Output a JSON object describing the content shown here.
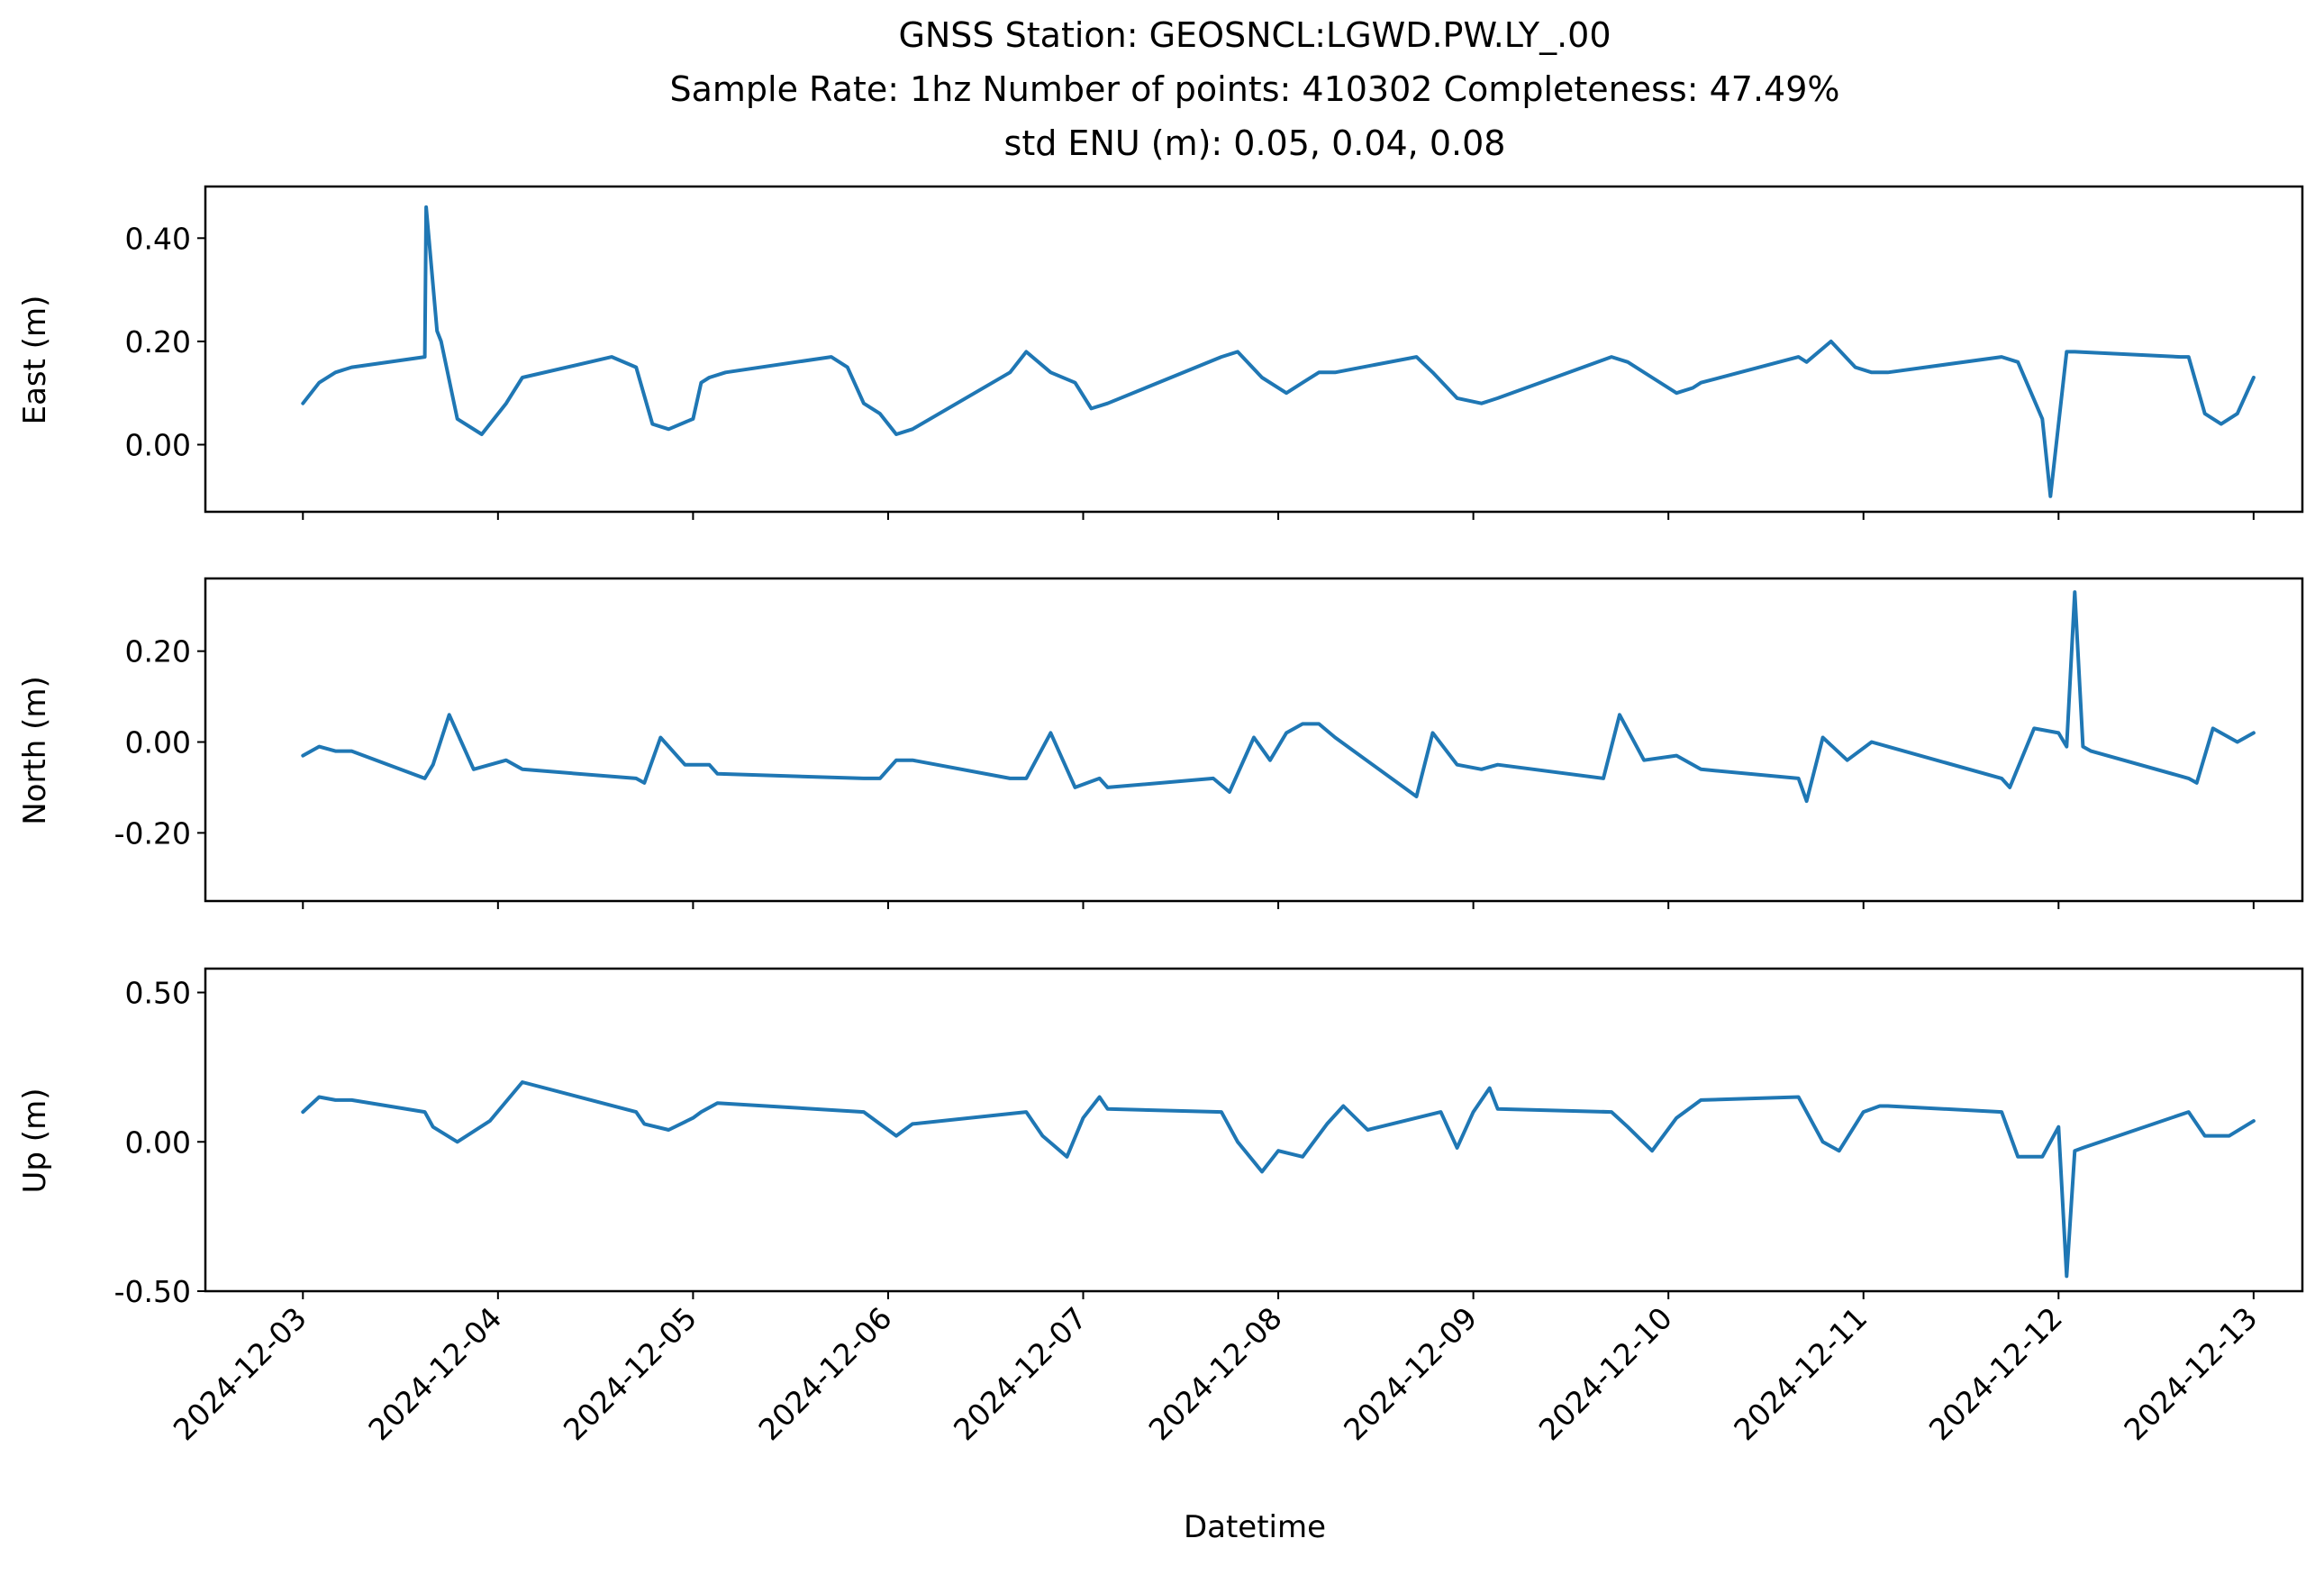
{
  "chart_data": {
    "type": "line",
    "title_lines": [
      "GNSS Station: GEOSNCL:LGWD.PW.LY_.00",
      "Sample Rate: 1hz   Number of points: 410302    Completeness:  47.49%",
      "std ENU (m):  0.05, 0.04, 0.08"
    ],
    "xlabel": "Datetime",
    "x_ticks": [
      "2024-12-03",
      "2024-12-04",
      "2024-12-05",
      "2024-12-06",
      "2024-12-07",
      "2024-12-08",
      "2024-12-09",
      "2024-12-10",
      "2024-12-11",
      "2024-12-12",
      "2024-12-13"
    ],
    "xlim": [
      "2024-12-02T12:00",
      "2024-12-13T06:00"
    ],
    "color": "#1f77b4",
    "grid": false,
    "panels": [
      {
        "name": "east",
        "ylabel": "East (m)",
        "ylim": [
          -0.13,
          0.5
        ],
        "y_ticks": [
          0.4,
          0.2,
          0.0
        ],
        "y_tick_labels": [
          "0.40",
          "0.20",
          "0.00"
        ],
        "x": [
          "2024-12-03T00:00",
          "2024-12-03T02:00",
          "2024-12-03T04:00",
          "2024-12-03T06:00",
          "2024-12-03T15:00",
          "2024-12-03T15:10",
          "2024-12-03T16:30",
          "2024-12-03T17:00",
          "2024-12-03T19:00",
          "2024-12-03T22:00",
          "2024-12-04T01:00",
          "2024-12-04T03:00",
          "2024-12-04T14:00",
          "2024-12-04T17:00",
          "2024-12-04T19:00",
          "2024-12-04T21:00",
          "2024-12-05T00:00",
          "2024-12-05T01:00",
          "2024-12-05T02:00",
          "2024-12-05T04:00",
          "2024-12-05T17:00",
          "2024-12-05T19:00",
          "2024-12-05T21:00",
          "2024-12-05T23:00",
          "2024-12-06T01:00",
          "2024-12-06T03:00",
          "2024-12-06T15:00",
          "2024-12-06T17:00",
          "2024-12-06T20:00",
          "2024-12-06T23:00",
          "2024-12-07T01:00",
          "2024-12-07T03:00",
          "2024-12-07T17:00",
          "2024-12-07T19:00",
          "2024-12-07T22:00",
          "2024-12-08T01:00",
          "2024-12-08T03:00",
          "2024-12-08T05:00",
          "2024-12-08T07:00",
          "2024-12-08T17:00",
          "2024-12-08T19:00",
          "2024-12-08T22:00",
          "2024-12-09T01:00",
          "2024-12-09T03:00",
          "2024-12-09T17:00",
          "2024-12-09T19:00",
          "2024-12-09T22:00",
          "2024-12-10T01:00",
          "2024-12-10T03:00",
          "2024-12-10T04:00",
          "2024-12-10T16:00",
          "2024-12-10T17:00",
          "2024-12-10T20:00",
          "2024-12-10T23:00",
          "2024-12-11T01:00",
          "2024-12-11T03:00",
          "2024-12-11T17:00",
          "2024-12-11T19:00",
          "2024-12-11T22:00",
          "2024-12-11T23:00",
          "2024-12-12T01:00",
          "2024-12-12T02:00",
          "2024-12-12T15:00",
          "2024-12-12T16:00",
          "2024-12-12T18:00",
          "2024-12-12T20:00",
          "2024-12-12T22:00",
          "2024-12-13T00:00"
        ],
        "y": [
          0.08,
          0.12,
          0.14,
          0.15,
          0.17,
          0.46,
          0.22,
          0.2,
          0.05,
          0.02,
          0.08,
          0.13,
          0.17,
          0.15,
          0.04,
          0.03,
          0.05,
          0.12,
          0.13,
          0.14,
          0.17,
          0.15,
          0.08,
          0.06,
          0.02,
          0.03,
          0.14,
          0.18,
          0.14,
          0.12,
          0.07,
          0.08,
          0.17,
          0.18,
          0.13,
          0.1,
          0.12,
          0.14,
          0.14,
          0.17,
          0.14,
          0.09,
          0.08,
          0.09,
          0.17,
          0.16,
          0.13,
          0.1,
          0.11,
          0.12,
          0.17,
          0.16,
          0.2,
          0.15,
          0.14,
          0.14,
          0.17,
          0.16,
          0.05,
          -0.1,
          0.18,
          0.18,
          0.17,
          0.17,
          0.06,
          0.04,
          0.06,
          0.13
        ]
      },
      {
        "name": "north",
        "ylabel": "North (m)",
        "ylim": [
          -0.35,
          0.36
        ],
        "y_ticks": [
          0.2,
          0.0,
          -0.2
        ],
        "y_tick_labels": [
          "0.20",
          "0.00",
          "-0.20"
        ],
        "x": [
          "2024-12-03T00:00",
          "2024-12-03T02:00",
          "2024-12-03T04:00",
          "2024-12-03T06:00",
          "2024-12-03T15:00",
          "2024-12-03T16:00",
          "2024-12-03T18:00",
          "2024-12-03T21:00",
          "2024-12-04T01:00",
          "2024-12-04T03:00",
          "2024-12-04T17:00",
          "2024-12-04T18:00",
          "2024-12-04T20:00",
          "2024-12-04T23:00",
          "2024-12-05T02:00",
          "2024-12-05T03:00",
          "2024-12-05T21:00",
          "2024-12-05T23:00",
          "2024-12-06T01:00",
          "2024-12-06T03:00",
          "2024-12-06T15:00",
          "2024-12-06T17:00",
          "2024-12-06T20:00",
          "2024-12-06T23:00",
          "2024-12-07T02:00",
          "2024-12-07T03:00",
          "2024-12-07T16:00",
          "2024-12-07T18:00",
          "2024-12-07T21:00",
          "2024-12-07T23:00",
          "2024-12-08T01:00",
          "2024-12-08T03:00",
          "2024-12-08T05:00",
          "2024-12-08T07:00",
          "2024-12-08T17:00",
          "2024-12-08T19:00",
          "2024-12-08T22:00",
          "2024-12-09T01:00",
          "2024-12-09T03:00",
          "2024-12-09T16:00",
          "2024-12-09T18:00",
          "2024-12-09T21:00",
          "2024-12-10T01:00",
          "2024-12-10T04:00",
          "2024-12-10T16:00",
          "2024-12-10T17:00",
          "2024-12-10T19:00",
          "2024-12-10T22:00",
          "2024-12-11T01:00",
          "2024-12-11T03:00",
          "2024-12-11T17:00",
          "2024-12-11T18:00",
          "2024-12-11T21:00",
          "2024-12-12T00:00",
          "2024-12-12T01:00",
          "2024-12-12T02:00",
          "2024-12-12T03:00",
          "2024-12-12T04:00",
          "2024-12-12T16:00",
          "2024-12-12T17:00",
          "2024-12-12T19:00",
          "2024-12-12T22:00",
          "2024-12-13T00:00"
        ],
        "y": [
          -0.03,
          -0.01,
          -0.02,
          -0.02,
          -0.08,
          -0.05,
          0.06,
          -0.06,
          -0.04,
          -0.06,
          -0.08,
          -0.09,
          0.01,
          -0.05,
          -0.05,
          -0.07,
          -0.08,
          -0.08,
          -0.04,
          -0.04,
          -0.08,
          -0.08,
          0.02,
          -0.1,
          -0.08,
          -0.1,
          -0.08,
          -0.11,
          0.01,
          -0.04,
          0.02,
          0.04,
          0.04,
          0.01,
          -0.12,
          0.02,
          -0.05,
          -0.06,
          -0.05,
          -0.08,
          0.06,
          -0.04,
          -0.03,
          -0.06,
          -0.08,
          -0.13,
          0.01,
          -0.04,
          0.0,
          -0.01,
          -0.08,
          -0.1,
          0.03,
          0.02,
          -0.01,
          0.33,
          -0.01,
          -0.02,
          -0.08,
          -0.09,
          0.03,
          0.0,
          0.02
        ]
      },
      {
        "name": "up",
        "ylabel": "Up (m)",
        "ylim": [
          -0.5,
          0.58
        ],
        "y_ticks": [
          0.5,
          0.0,
          -0.5
        ],
        "y_tick_labels": [
          "0.50",
          "0.00",
          "-0.50"
        ],
        "x": [
          "2024-12-03T00:00",
          "2024-12-03T02:00",
          "2024-12-03T04:00",
          "2024-12-03T06:00",
          "2024-12-03T15:00",
          "2024-12-03T16:00",
          "2024-12-03T19:00",
          "2024-12-03T23:00",
          "2024-12-04T03:00",
          "2024-12-04T17:00",
          "2024-12-04T18:00",
          "2024-12-04T21:00",
          "2024-12-05T00:00",
          "2024-12-05T01:00",
          "2024-12-05T03:00",
          "2024-12-05T21:00",
          "2024-12-05T23:00",
          "2024-12-06T01:00",
          "2024-12-06T03:00",
          "2024-12-06T17:00",
          "2024-12-06T19:00",
          "2024-12-06T22:00",
          "2024-12-07T00:00",
          "2024-12-07T02:00",
          "2024-12-07T03:00",
          "2024-12-07T17:00",
          "2024-12-07T19:00",
          "2024-12-07T22:00",
          "2024-12-08T00:00",
          "2024-12-08T03:00",
          "2024-12-08T06:00",
          "2024-12-08T08:00",
          "2024-12-08T11:00",
          "2024-12-08T20:00",
          "2024-12-08T22:00",
          "2024-12-09T00:00",
          "2024-12-09T02:00",
          "2024-12-09T03:00",
          "2024-12-09T17:00",
          "2024-12-09T19:00",
          "2024-12-09T22:00",
          "2024-12-10T01:00",
          "2024-12-10T04:00",
          "2024-12-10T16:00",
          "2024-12-10T17:00",
          "2024-12-10T19:00",
          "2024-12-10T21:00",
          "2024-12-11T00:00",
          "2024-12-11T02:00",
          "2024-12-11T03:00",
          "2024-12-11T17:00",
          "2024-12-11T19:00",
          "2024-12-11T22:00",
          "2024-12-12T00:00",
          "2024-12-12T01:00",
          "2024-12-12T02:00",
          "2024-12-12T03:00",
          "2024-12-12T16:00",
          "2024-12-12T18:00",
          "2024-12-12T21:00",
          "2024-12-13T00:00"
        ],
        "y": [
          0.1,
          0.15,
          0.14,
          0.14,
          0.1,
          0.05,
          0.0,
          0.07,
          0.2,
          0.1,
          0.06,
          0.04,
          0.08,
          0.1,
          0.13,
          0.1,
          0.06,
          0.02,
          0.06,
          0.1,
          0.02,
          -0.05,
          0.08,
          0.15,
          0.11,
          0.1,
          0.0,
          -0.1,
          -0.03,
          -0.05,
          0.06,
          0.12,
          0.04,
          0.1,
          -0.02,
          0.1,
          0.18,
          0.11,
          0.1,
          0.05,
          -0.03,
          0.08,
          0.14,
          0.15,
          0.1,
          0.0,
          -0.03,
          0.1,
          0.12,
          0.12,
          0.1,
          -0.05,
          -0.05,
          0.05,
          -0.45,
          -0.03,
          -0.02,
          0.1,
          0.02,
          0.02,
          0.07
        ]
      }
    ]
  }
}
